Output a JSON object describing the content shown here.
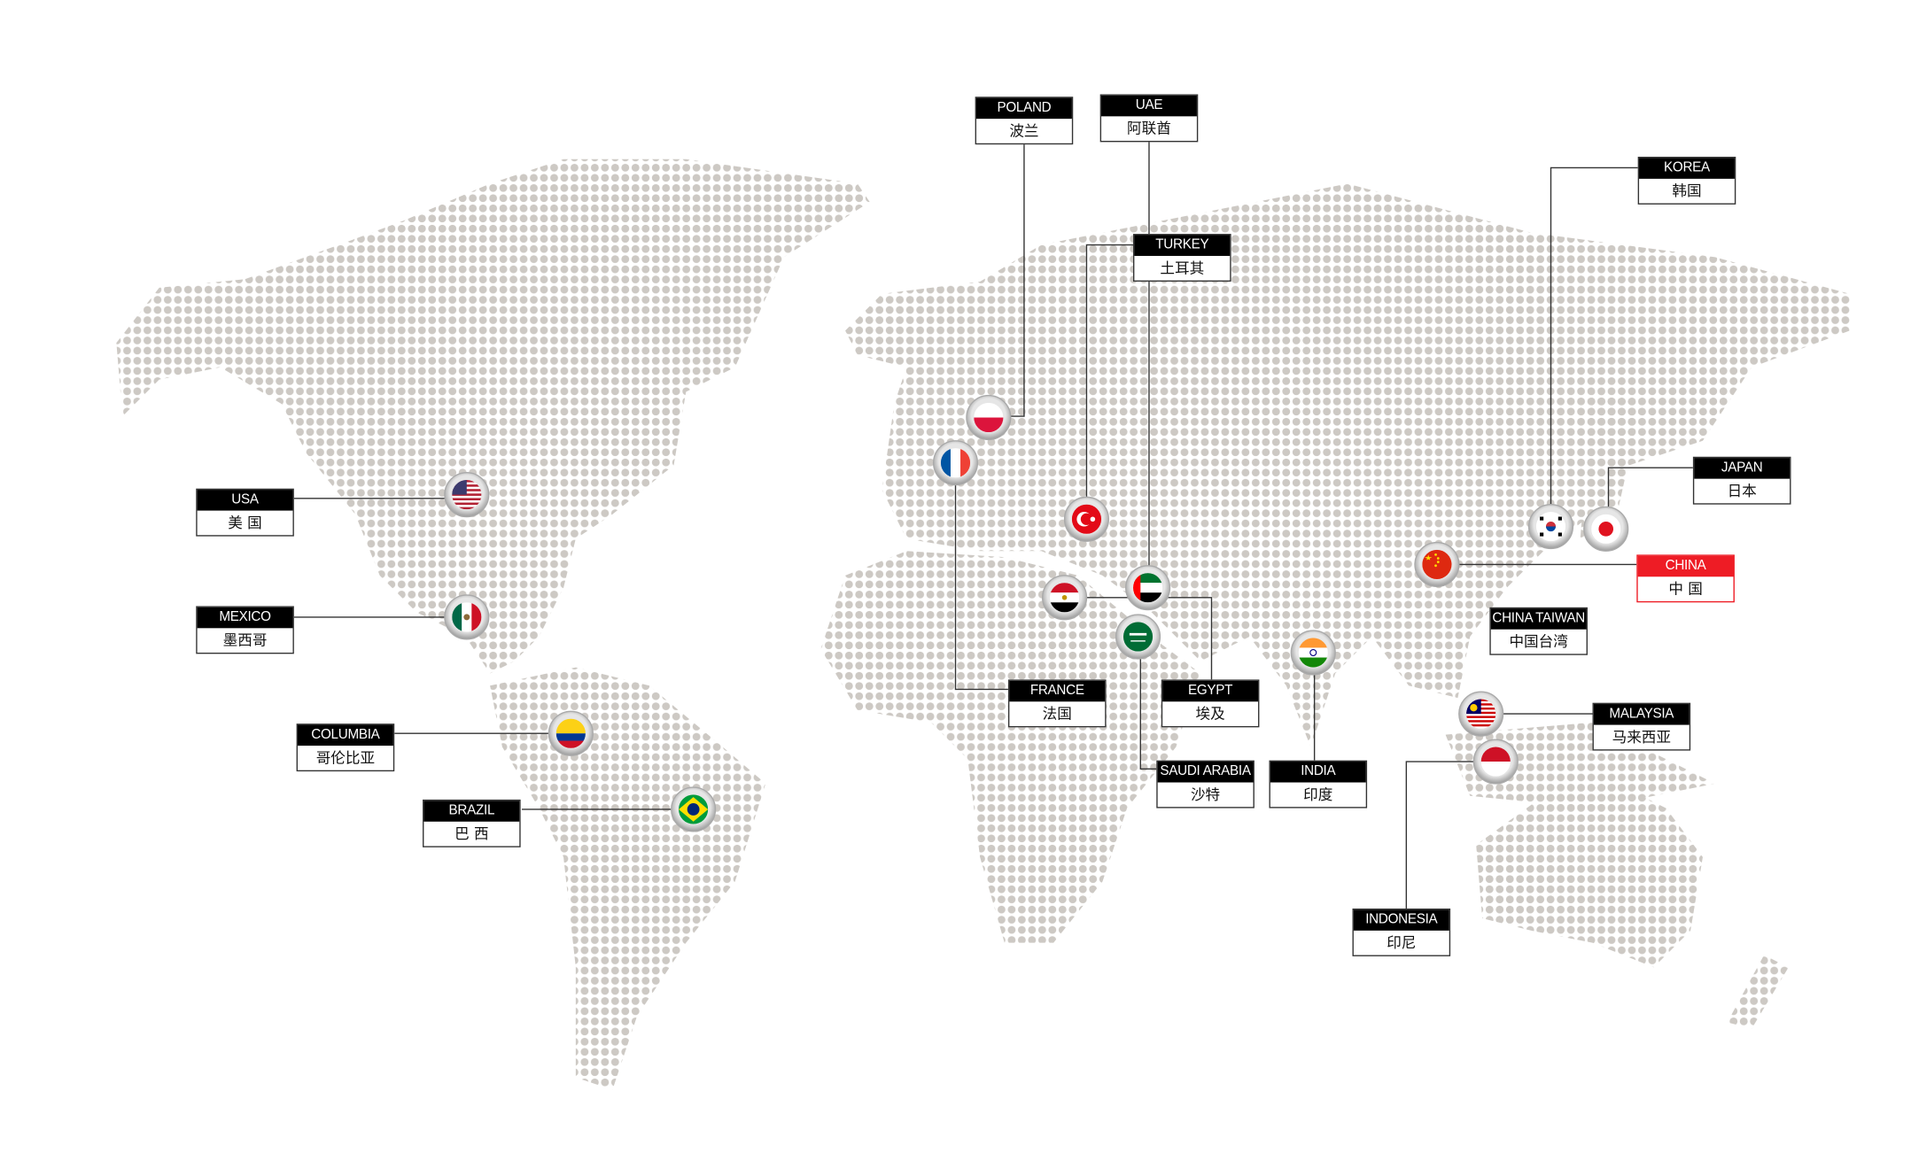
{
  "colors": {
    "dot": "#cdc9c4",
    "label_header": "#000000",
    "highlight": "#ee1c25",
    "connector": "#333333"
  },
  "labels": [
    {
      "en": "POLAND",
      "zh": "波兰",
      "flag": "poland-flag-icon"
    },
    {
      "en": "UAE",
      "zh": "阿联酋",
      "flag": "uae-flag-icon"
    },
    {
      "en": "TURKEY",
      "zh": "土耳其",
      "flag": "turkey-flag-icon"
    },
    {
      "en": "KOREA",
      "zh": "韩国",
      "flag": "korea-flag-icon"
    },
    {
      "en": "JAPAN",
      "zh": "日本",
      "flag": "japan-flag-icon"
    },
    {
      "en": "CHINA",
      "zh": "中 国",
      "flag": "china-flag-icon",
      "highlight": true
    },
    {
      "en": "CHINA TAIWAN",
      "zh": "中国台湾"
    },
    {
      "en": "USA",
      "zh": "美 国",
      "flag": "usa-flag-icon"
    },
    {
      "en": "MEXICO",
      "zh": "墨西哥",
      "flag": "mexico-flag-icon"
    },
    {
      "en": "COLUMBIA",
      "zh": "哥伦比亚",
      "flag": "colombia-flag-icon"
    },
    {
      "en": "BRAZIL",
      "zh": "巴 西",
      "flag": "brazil-flag-icon"
    },
    {
      "en": "FRANCE",
      "zh": "法国",
      "flag": "france-flag-icon"
    },
    {
      "en": "EGYPT",
      "zh": "埃及",
      "flag": "egypt-flag-icon"
    },
    {
      "en": "SAUDI ARABIA",
      "zh": "沙特",
      "flag": "saudi-arabia-flag-icon"
    },
    {
      "en": "INDIA",
      "zh": "印度",
      "flag": "india-flag-icon"
    },
    {
      "en": "MALAYSIA",
      "zh": "马来西亚",
      "flag": "malaysia-flag-icon"
    },
    {
      "en": "INDONESIA",
      "zh": "印尼",
      "flag": "indonesia-flag-icon"
    }
  ]
}
